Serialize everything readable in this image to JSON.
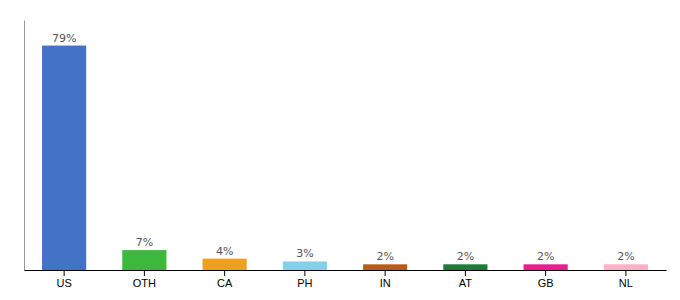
{
  "chart_data": {
    "type": "bar",
    "categories": [
      "US",
      "OTH",
      "CA",
      "PH",
      "IN",
      "AT",
      "GB",
      "NL"
    ],
    "values": [
      79,
      7,
      4,
      3,
      2,
      2,
      2,
      2
    ],
    "value_labels": [
      "79%",
      "7%",
      "4%",
      "3%",
      "2%",
      "2%",
      "2%",
      "2%"
    ],
    "colors": [
      "#4472c4",
      "#3cb83c",
      "#f0a020",
      "#87ceeb",
      "#b85c1a",
      "#1e7a3a",
      "#e91e8c",
      "#ffb0c8"
    ],
    "ylim": [
      0,
      88
    ],
    "tick_labels": "x"
  }
}
